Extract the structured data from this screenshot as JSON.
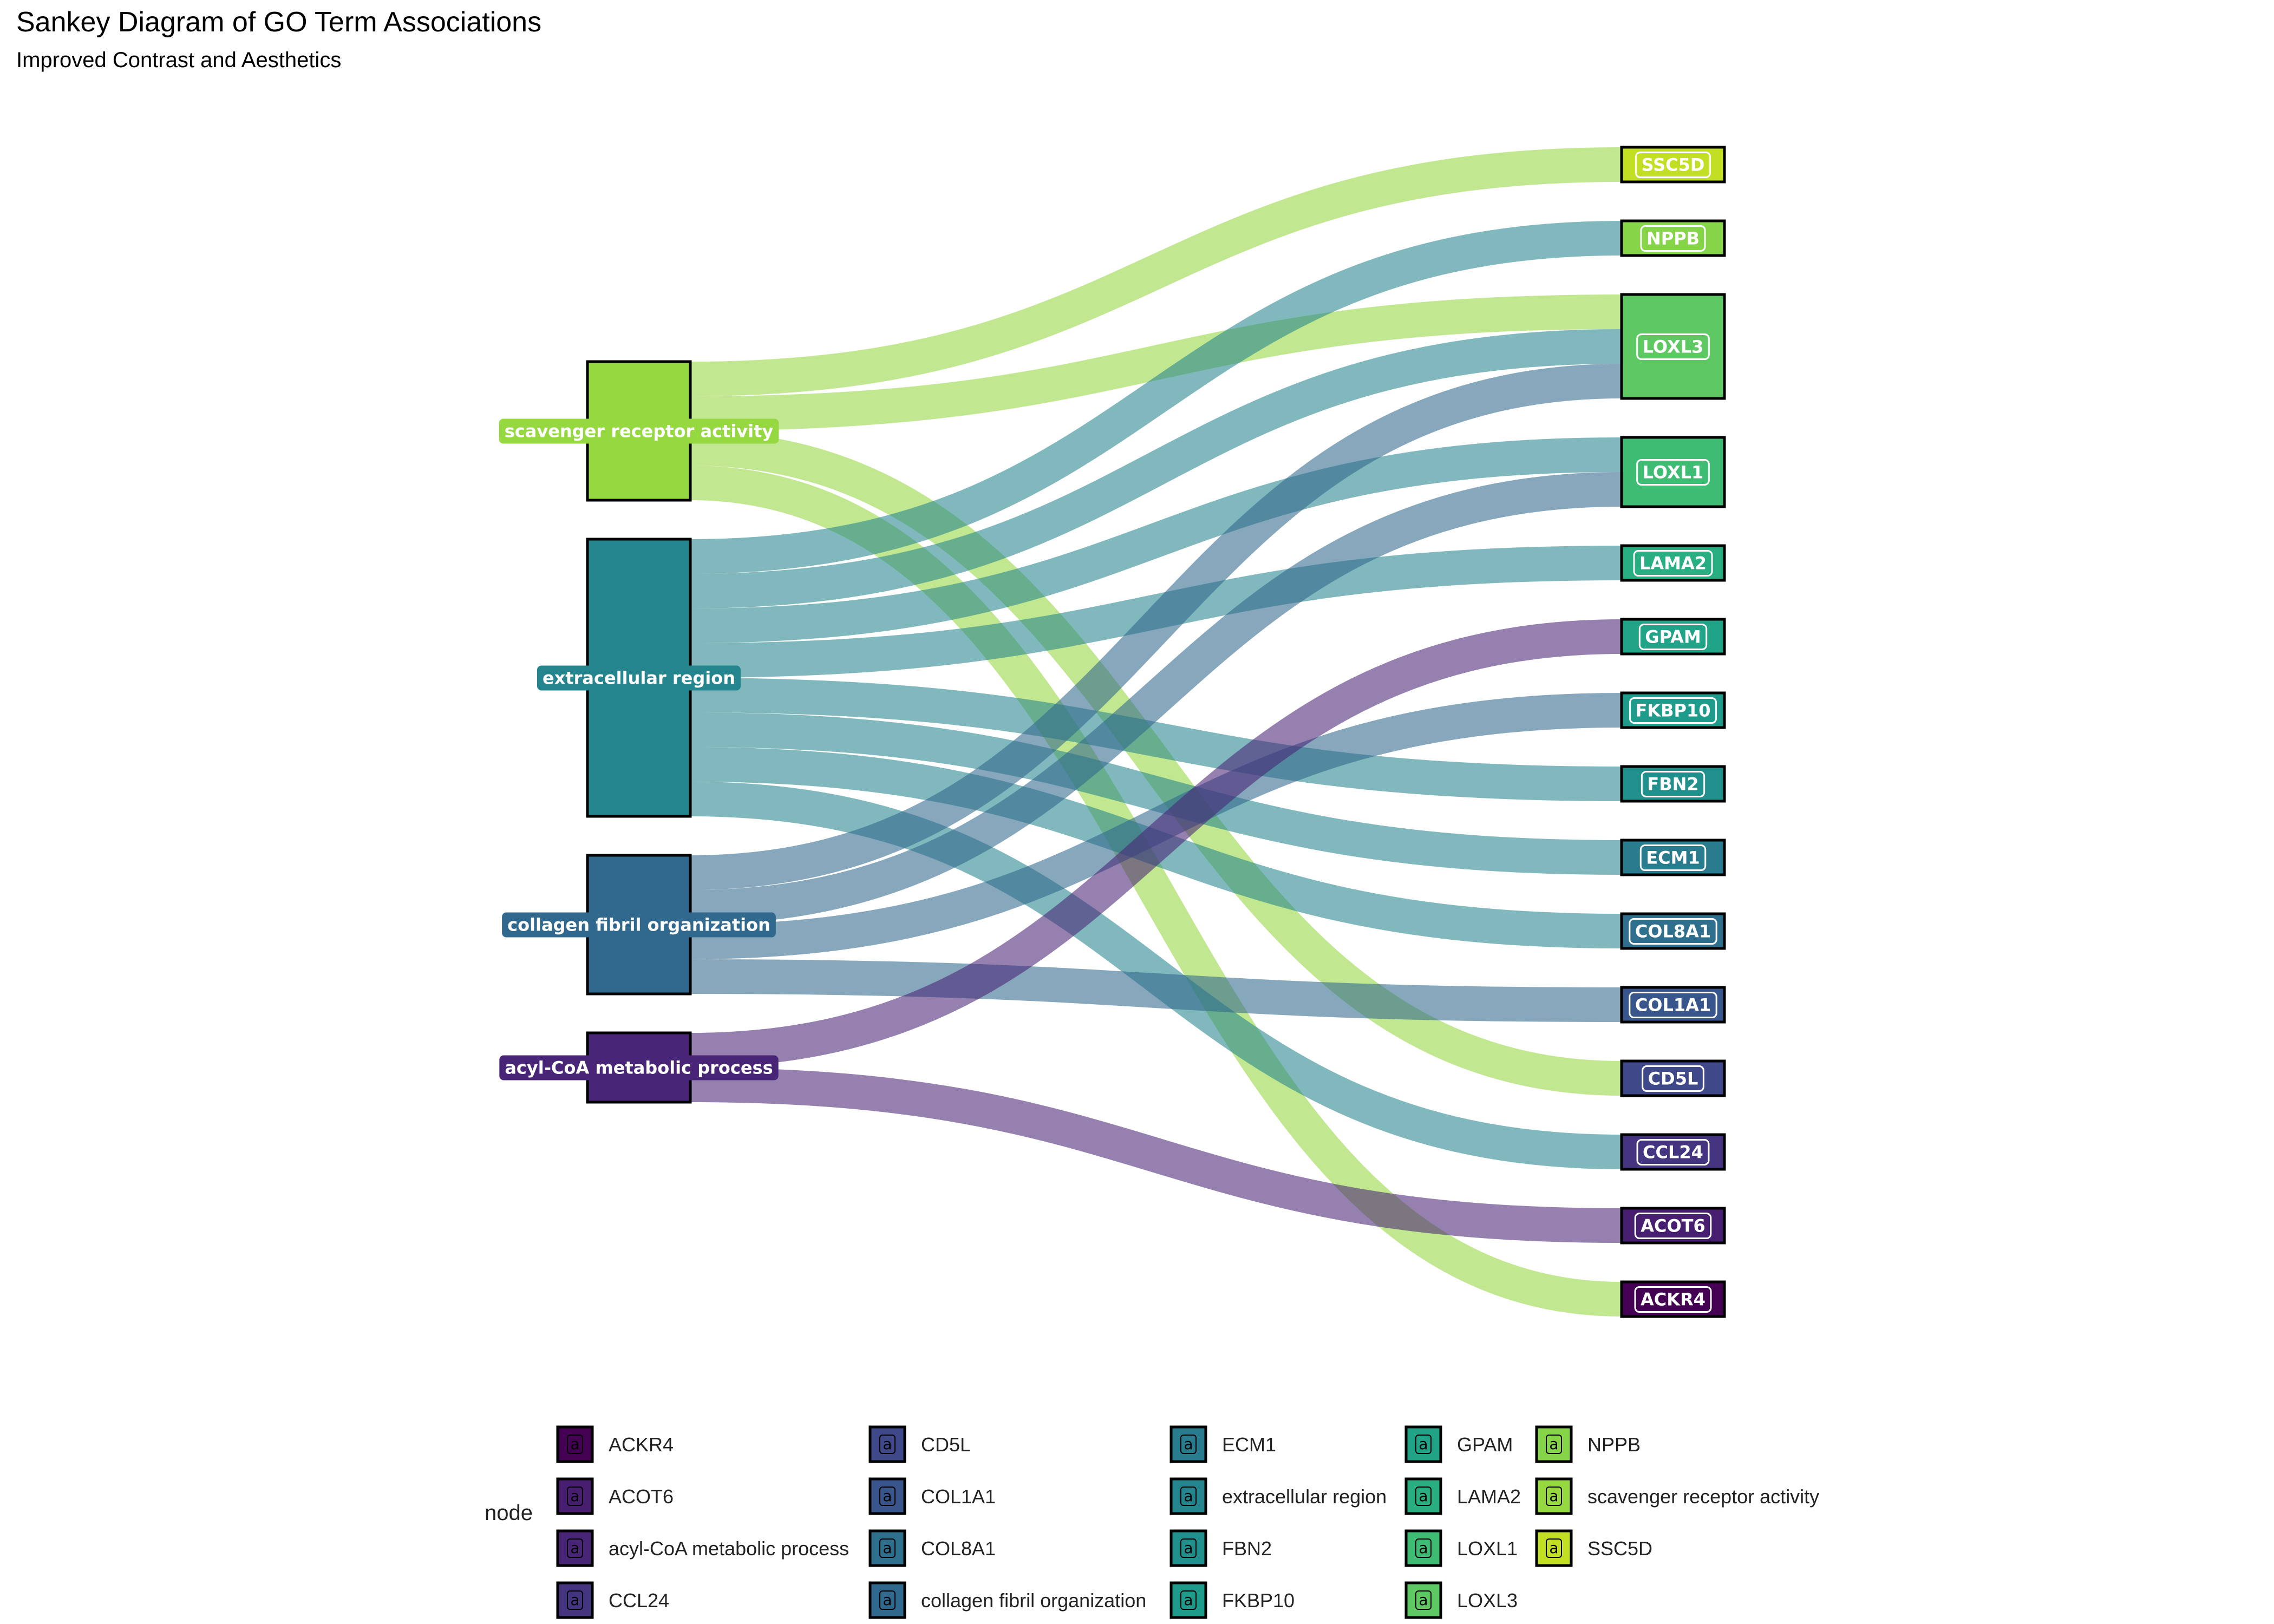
{
  "chart_data": {
    "type": "sankey",
    "title": "Sankey Diagram of GO Term Associations",
    "subtitle": "Improved Contrast and Aesthetics",
    "legend_title": "node",
    "legend_key_glyph": "a",
    "legend_position": "bottom",
    "source_nodes": [
      {
        "name": "scavenger receptor activity",
        "color": "#95D840"
      },
      {
        "name": "extracellular region",
        "color": "#25858E"
      },
      {
        "name": "collagen fibril organization",
        "color": "#31688E"
      },
      {
        "name": "acyl-CoA metabolic process",
        "color": "#482576"
      }
    ],
    "target_nodes": [
      {
        "name": "SSC5D",
        "color": "#C2DF23"
      },
      {
        "name": "NPPB",
        "color": "#86D549"
      },
      {
        "name": "LOXL3",
        "color": "#5EC962"
      },
      {
        "name": "LOXL1",
        "color": "#3FBC73"
      },
      {
        "name": "LAMA2",
        "color": "#28AE80"
      },
      {
        "name": "GPAM",
        "color": "#20A386"
      },
      {
        "name": "FKBP10",
        "color": "#1E9B8A"
      },
      {
        "name": "FBN2",
        "color": "#21908D"
      },
      {
        "name": "ECM1",
        "color": "#287C8E"
      },
      {
        "name": "COL8A1",
        "color": "#2E6F8E"
      },
      {
        "name": "COL1A1",
        "color": "#39568C"
      },
      {
        "name": "CD5L",
        "color": "#3F4889"
      },
      {
        "name": "CCL24",
        "color": "#453581"
      },
      {
        "name": "ACOT6",
        "color": "#481F70"
      },
      {
        "name": "ACKR4",
        "color": "#440154"
      }
    ],
    "links": [
      {
        "source": "scavenger receptor activity",
        "target": "SSC5D",
        "value": 1
      },
      {
        "source": "scavenger receptor activity",
        "target": "LOXL3",
        "value": 1
      },
      {
        "source": "scavenger receptor activity",
        "target": "CD5L",
        "value": 1
      },
      {
        "source": "scavenger receptor activity",
        "target": "ACKR4",
        "value": 1
      },
      {
        "source": "extracellular region",
        "target": "NPPB",
        "value": 1
      },
      {
        "source": "extracellular region",
        "target": "LOXL3",
        "value": 1
      },
      {
        "source": "extracellular region",
        "target": "LOXL1",
        "value": 1
      },
      {
        "source": "extracellular region",
        "target": "LAMA2",
        "value": 1
      },
      {
        "source": "extracellular region",
        "target": "FBN2",
        "value": 1
      },
      {
        "source": "extracellular region",
        "target": "ECM1",
        "value": 1
      },
      {
        "source": "extracellular region",
        "target": "COL8A1",
        "value": 1
      },
      {
        "source": "extracellular region",
        "target": "CCL24",
        "value": 1
      },
      {
        "source": "collagen fibril organization",
        "target": "LOXL3",
        "value": 1
      },
      {
        "source": "collagen fibril organization",
        "target": "LOXL1",
        "value": 1
      },
      {
        "source": "collagen fibril organization",
        "target": "FKBP10",
        "value": 1
      },
      {
        "source": "collagen fibril organization",
        "target": "COL1A1",
        "value": 1
      },
      {
        "source": "acyl-CoA metabolic process",
        "target": "GPAM",
        "value": 1
      },
      {
        "source": "acyl-CoA metabolic process",
        "target": "ACOT6",
        "value": 1
      }
    ],
    "legend_items": [
      {
        "name": "ACKR4",
        "color": "#440154"
      },
      {
        "name": "ACOT6",
        "color": "#481F70"
      },
      {
        "name": "acyl-CoA metabolic process",
        "color": "#482576"
      },
      {
        "name": "CCL24",
        "color": "#453581"
      },
      {
        "name": "CD5L",
        "color": "#3F4889"
      },
      {
        "name": "COL1A1",
        "color": "#39568C"
      },
      {
        "name": "COL8A1",
        "color": "#2E6F8E"
      },
      {
        "name": "collagen fibril organization",
        "color": "#31688E"
      },
      {
        "name": "ECM1",
        "color": "#287C8E"
      },
      {
        "name": "extracellular region",
        "color": "#25858E"
      },
      {
        "name": "FBN2",
        "color": "#21908D"
      },
      {
        "name": "FKBP10",
        "color": "#1E9B8A"
      },
      {
        "name": "GPAM",
        "color": "#20A386"
      },
      {
        "name": "LAMA2",
        "color": "#28AE80"
      },
      {
        "name": "LOXL1",
        "color": "#3FBC73"
      },
      {
        "name": "LOXL3",
        "color": "#5EC962"
      },
      {
        "name": "NPPB",
        "color": "#86D549"
      },
      {
        "name": "scavenger receptor activity",
        "color": "#95D840"
      },
      {
        "name": "SSC5D",
        "color": "#C2DF23"
      }
    ]
  }
}
